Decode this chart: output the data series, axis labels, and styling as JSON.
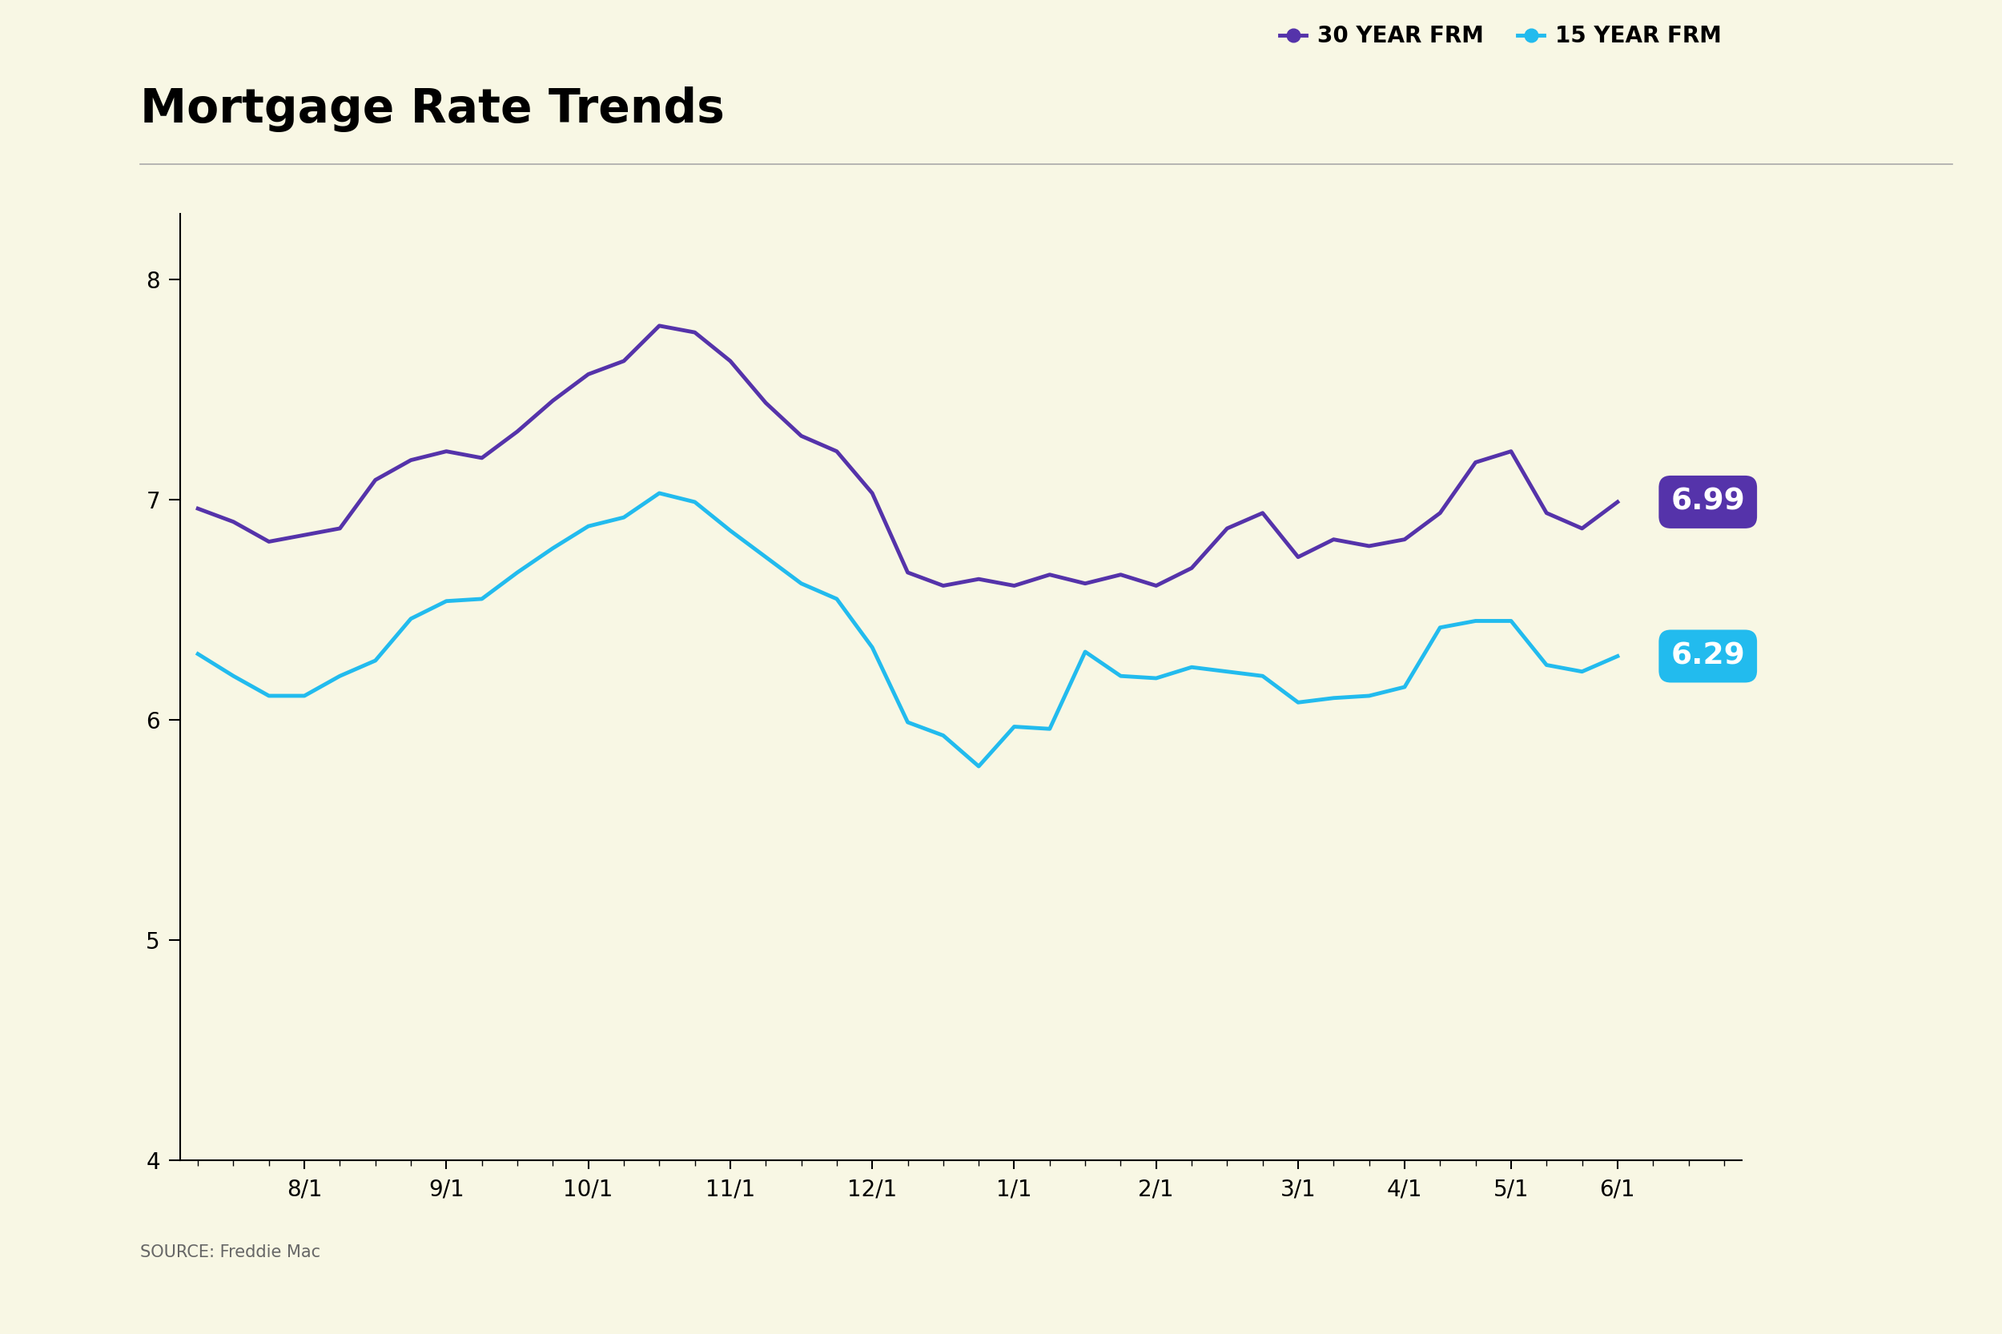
{
  "title": "Mortgage Rate Trends",
  "source": "SOURCE: Freddie Mac",
  "background_color": "#f8f7e4",
  "line30_color": "#5533aa",
  "line15_color": "#22bbee",
  "end_label_30": "6.99",
  "end_label_15": "6.29",
  "end_label_30_color": "#5533aa",
  "end_label_15_color": "#22bbee",
  "ylim": [
    4,
    8.3
  ],
  "yticks": [
    4,
    5,
    6,
    7,
    8
  ],
  "x_labels": [
    "8/1",
    "9/1",
    "10/1",
    "11/1",
    "12/1",
    "1/1",
    "2/1",
    "3/1",
    "4/1",
    "5/1",
    "6/1"
  ],
  "rate_30": [
    6.96,
    6.9,
    6.81,
    6.84,
    6.87,
    7.09,
    7.18,
    7.22,
    7.19,
    7.31,
    7.45,
    7.57,
    7.63,
    7.79,
    7.76,
    7.63,
    7.44,
    7.29,
    7.22,
    7.03,
    6.67,
    6.61,
    6.64,
    6.61,
    6.66,
    6.62,
    6.66,
    6.61,
    6.69,
    6.87,
    6.94,
    6.74,
    6.82,
    6.79,
    6.82,
    6.94,
    7.17,
    7.22,
    6.94,
    6.87,
    6.99
  ],
  "rate_15": [
    6.3,
    6.2,
    6.11,
    6.11,
    6.2,
    6.27,
    6.46,
    6.54,
    6.55,
    6.67,
    6.78,
    6.88,
    6.92,
    7.03,
    6.99,
    6.86,
    6.74,
    6.62,
    6.55,
    6.33,
    5.99,
    5.93,
    5.79,
    5.97,
    5.96,
    6.31,
    6.2,
    6.19,
    6.24,
    6.22,
    6.2,
    6.08,
    6.1,
    6.11,
    6.15,
    6.42,
    6.45,
    6.45,
    6.25,
    6.22,
    6.29
  ],
  "x_tick_positions": [
    3,
    7,
    11,
    15,
    19,
    23,
    27,
    31,
    34,
    37,
    40
  ],
  "legend_30": "30 YEAR FRM",
  "legend_15": "15 YEAR FRM",
  "title_fontsize": 42,
  "tick_fontsize": 20,
  "legend_fontsize": 20,
  "source_fontsize": 15
}
